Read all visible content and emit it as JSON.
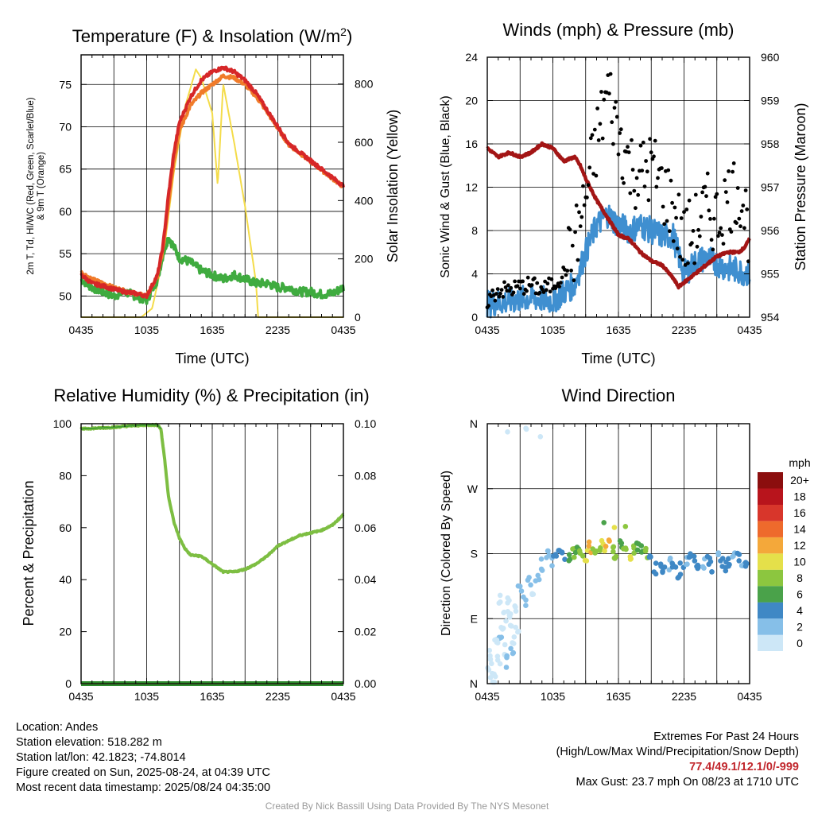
{
  "panels": {
    "temp": {
      "title": "Temperature (F) & Insolation (W/m²)",
      "xlabel": "Time (UTC)",
      "ylabel_line1": "2m T, Td, HI/WC (Red, Green, Scarlet/Blue)",
      "ylabel_line2": "& 9m T (Orange)",
      "ylabel_right": "Solar Insolation (Yellow)"
    },
    "wind": {
      "title": "Winds (mph) & Pressure (mb)",
      "xlabel": "Time (UTC)",
      "ylabel": "Sonic Wind & Gust (Blue, Black)",
      "ylabel_right": "Station Pressure (Maroon)"
    },
    "rh": {
      "title": "Relative Humidity (%) & Precipitation (in)",
      "ylabel": "Percent & Precipitation"
    },
    "dir": {
      "title": "Wind Direction",
      "ylabel": "Direction (Colored By Speed)",
      "colorbar_unit": "mph"
    }
  },
  "chart_data": [
    {
      "type": "line",
      "title": "Temperature (F) & Insolation (W/m²)",
      "xlabel": "Time (UTC)",
      "x_ticks": [
        "0435",
        "1035",
        "1635",
        "2235",
        "0435"
      ],
      "x_range_hours": [
        0,
        24
      ],
      "y_left_range": [
        47.5,
        78.5
      ],
      "y_left_ticks": [
        50,
        55,
        60,
        65,
        70,
        75
      ],
      "y_right_range": [
        0,
        900
      ],
      "y_right_ticks": [
        0,
        200,
        400,
        600,
        800
      ],
      "grid": true,
      "series": [
        {
          "name": "2m T",
          "axis": "left",
          "color": "#d62728",
          "x": [
            0,
            1,
            2,
            3,
            4,
            5,
            6,
            7,
            7.5,
            8,
            8.5,
            9,
            10,
            11,
            12,
            13,
            14,
            15,
            16,
            17,
            18,
            19,
            20,
            21,
            22,
            23,
            24
          ],
          "y": [
            52.5,
            51.5,
            51.2,
            50.8,
            50.5,
            50.3,
            50.0,
            52.5,
            56.0,
            62.0,
            67.0,
            70.5,
            73.5,
            75.5,
            76.5,
            77.0,
            76.5,
            75.5,
            74.0,
            72.0,
            70.0,
            68.0,
            67.0,
            66.0,
            65.0,
            64.0,
            63.0
          ]
        },
        {
          "name": "9m T",
          "axis": "left",
          "color": "#f07b2a",
          "x": [
            0,
            1,
            2,
            3,
            4,
            5,
            6,
            7,
            7.5,
            8,
            8.5,
            9,
            10,
            11,
            12,
            13,
            14,
            15,
            16,
            17,
            18,
            19,
            20,
            21,
            22,
            23,
            24
          ],
          "y": [
            52.8,
            52.0,
            51.5,
            51.0,
            50.6,
            50.3,
            50.0,
            52.3,
            55.5,
            61.0,
            66.0,
            69.5,
            72.5,
            74.0,
            75.0,
            76.0,
            75.8,
            75.0,
            73.6,
            71.8,
            69.8,
            67.9,
            66.9,
            65.9,
            64.9,
            63.9,
            62.9
          ]
        },
        {
          "name": "Td",
          "axis": "left",
          "color": "#3fab3f",
          "x": [
            0,
            1,
            2,
            3,
            4,
            5,
            6,
            7,
            7.5,
            8,
            9,
            10,
            11,
            12,
            13,
            14,
            15,
            16,
            17,
            18,
            19,
            20,
            21,
            22,
            23,
            24
          ],
          "y": [
            52.0,
            51.0,
            50.5,
            50.0,
            50.5,
            50.0,
            49.5,
            52.0,
            55.0,
            57.0,
            54.5,
            54.0,
            53.0,
            52.5,
            52.0,
            52.5,
            52.0,
            51.5,
            51.5,
            51.0,
            51.0,
            50.5,
            50.5,
            50.2,
            50.3,
            51.0
          ]
        },
        {
          "name": "Solar Insolation",
          "axis": "right",
          "color": "#f4dc4a",
          "x": [
            0,
            5.5,
            6.5,
            7.5,
            8.5,
            9.5,
            10.5,
            11,
            11.5,
            12,
            12.5,
            13,
            14,
            15,
            16,
            16.2,
            24
          ],
          "y": [
            0,
            0,
            30,
            200,
            500,
            720,
            850,
            820,
            760,
            700,
            450,
            800,
            600,
            380,
            120,
            0,
            0
          ]
        }
      ]
    },
    {
      "type": "line",
      "title": "Winds (mph) & Pressure (mb)",
      "xlabel": "Time (UTC)",
      "x_ticks": [
        "0435",
        "1035",
        "1635",
        "2235",
        "0435"
      ],
      "x_range_hours": [
        0,
        24
      ],
      "y_left_range": [
        0,
        24
      ],
      "y_left_ticks": [
        0,
        4,
        8,
        12,
        16,
        20,
        24
      ],
      "y_right_range": [
        954,
        960
      ],
      "y_right_ticks": [
        954,
        955,
        956,
        957,
        958,
        959,
        960
      ],
      "grid": true,
      "series": [
        {
          "name": "Sonic Wind",
          "axis": "left",
          "color": "#3f8fd0",
          "x": [
            0,
            2,
            4,
            6,
            7,
            8,
            9,
            10,
            11,
            12,
            13,
            14,
            15,
            16,
            17,
            18,
            19,
            20,
            21,
            22,
            23,
            24
          ],
          "y": [
            1.2,
            1.5,
            1.8,
            1.5,
            2.3,
            3.0,
            6.0,
            8.5,
            9.5,
            8.5,
            8.0,
            8.5,
            8.0,
            7.5,
            7.5,
            4.0,
            5.0,
            5.5,
            5.0,
            4.5,
            4.3,
            4.0
          ]
        },
        {
          "name": "Gust",
          "axis": "left",
          "color": "#000000",
          "marker": "dot",
          "x": [
            0,
            1,
            2,
            3,
            4,
            5,
            6,
            7,
            8,
            9,
            10,
            11,
            12,
            13,
            14,
            15,
            16,
            17,
            18,
            19,
            20,
            21,
            22,
            23,
            24
          ],
          "y": [
            1.5,
            2.5,
            2.5,
            2.8,
            3.0,
            2.5,
            3.0,
            4.0,
            6.5,
            11.0,
            16.0,
            21.0,
            17.0,
            14.0,
            13.0,
            14.0,
            12.0,
            10.0,
            7.0,
            8.0,
            10.0,
            9.0,
            11.0,
            12.0,
            8.0
          ]
        },
        {
          "name": "Station Pressure",
          "axis": "right",
          "color": "#a31515",
          "x": [
            0,
            1,
            2,
            3,
            4,
            5,
            6,
            7,
            8,
            8.5,
            9,
            10,
            11,
            12,
            13,
            14,
            15,
            16,
            17,
            17.5,
            18,
            19,
            20,
            21,
            22,
            23,
            23.5,
            24
          ],
          "y": [
            957.9,
            957.7,
            957.8,
            957.7,
            957.8,
            958.0,
            957.9,
            957.6,
            957.7,
            957.5,
            957.2,
            956.7,
            956.3,
            955.9,
            955.8,
            955.5,
            955.3,
            955.2,
            954.9,
            954.7,
            954.8,
            955.0,
            955.2,
            955.4,
            955.5,
            955.5,
            955.6,
            955.8
          ]
        }
      ]
    },
    {
      "type": "line",
      "title": "Relative Humidity (%) & Precipitation (in)",
      "x_ticks": [
        "0435",
        "1035",
        "1635",
        "2235",
        "0435"
      ],
      "x_range_hours": [
        0,
        24
      ],
      "y_left_range": [
        0,
        100
      ],
      "y_left_ticks": [
        0,
        20,
        40,
        60,
        80,
        100
      ],
      "y_right_range": [
        0,
        0.1
      ],
      "y_right_ticks": [
        "0.00",
        "0.02",
        "0.04",
        "0.06",
        "0.08",
        "0.10"
      ],
      "grid": true,
      "series": [
        {
          "name": "Relative Humidity",
          "axis": "left",
          "color": "#7dbe42",
          "x": [
            0,
            1,
            2,
            3,
            4,
            5,
            6,
            7,
            7.3,
            7.6,
            8,
            8.5,
            9,
            9.5,
            10,
            11,
            12,
            13,
            14,
            15,
            16,
            17,
            18,
            19,
            20,
            21,
            22,
            23,
            24
          ],
          "y": [
            98,
            98.2,
            98.4,
            98.6,
            99,
            99.3,
            99.5,
            99.5,
            98,
            88,
            72,
            62,
            56,
            52,
            49.5,
            49,
            46,
            43,
            43,
            44,
            46,
            49,
            53,
            55,
            57,
            58,
            59,
            61,
            65
          ]
        },
        {
          "name": "Precipitation",
          "axis": "right",
          "color": "#2e8b2e",
          "x": [
            0,
            24
          ],
          "y": [
            0,
            0
          ]
        }
      ]
    },
    {
      "type": "scatter",
      "title": "Wind Direction",
      "x_ticks": [
        "0435",
        "1035",
        "1635",
        "2235",
        "0435"
      ],
      "x_range_hours": [
        0,
        24
      ],
      "y_ticks": [
        "N",
        "E",
        "S",
        "W",
        "N"
      ],
      "y_range_degrees": [
        0,
        360
      ],
      "grid": true,
      "colorbar": {
        "unit": "mph",
        "levels": [
          "0",
          "2",
          "4",
          "6",
          "8",
          "10",
          "12",
          "14",
          "16",
          "18",
          "20+"
        ],
        "colors": [
          "#cde7f7",
          "#86bfe8",
          "#3f88c5",
          "#4aa24a",
          "#8cc63f",
          "#e5e04a",
          "#f4a83a",
          "#ee6a2c",
          "#d8362b",
          "#b8141c",
          "#8b0e0e"
        ]
      },
      "points": {
        "x": [
          0.3,
          0.8,
          1.2,
          1.6,
          2.0,
          2.4,
          0.5,
          1.0,
          1.4,
          1.9,
          2.3,
          2.7,
          0.6,
          1.1,
          1.5,
          2.2,
          0.2,
          0.9,
          1.7,
          2.5,
          3.0,
          3.4,
          3.8,
          4.2,
          4.6,
          5.0,
          5.4,
          5.8,
          6.2,
          6.6,
          7.0,
          7.4,
          7.8,
          8.2,
          8.6,
          9.0,
          9.4,
          9.8,
          10.2,
          10.6,
          11.0,
          11.4,
          11.8,
          12.2,
          12.6,
          13.0,
          13.4,
          13.8,
          14.2,
          14.6,
          15.0,
          15.4,
          15.8,
          16.2,
          16.6,
          17.0,
          17.4,
          17.8,
          18.2,
          18.6,
          19.0,
          19.4,
          19.8,
          20.2,
          20.6,
          21.0,
          21.4,
          21.8,
          22.2,
          22.6,
          23.0,
          23.4,
          23.8,
          1.8,
          3.5,
          3.6,
          4.7,
          10.5,
          11.8,
          12.7
        ],
        "y": [
          40,
          55,
          70,
          95,
          110,
          60,
          20,
          35,
          80,
          100,
          50,
          75,
          5,
          120,
          45,
          88,
          15,
          65,
          30,
          105,
          130,
          115,
          140,
          125,
          150,
          165,
          175,
          170,
          180,
          185,
          178,
          172,
          180,
          188,
          182,
          176,
          190,
          184,
          186,
          192,
          196,
          188,
          182,
          190,
          184,
          178,
          186,
          192,
          188,
          180,
          176,
          160,
          162,
          158,
          165,
          170,
          155,
          160,
          166,
          172,
          168,
          158,
          165,
          170,
          162,
          175,
          168,
          160,
          170,
          180,
          172,
          165,
          160,
          355,
          355,
          350,
          350,
          215,
          212,
          210
        ],
        "speed": [
          1,
          1,
          2,
          1,
          1,
          0,
          1,
          1,
          0,
          1,
          2,
          1,
          0,
          1,
          1,
          1,
          0,
          1,
          2,
          1,
          2,
          3,
          2,
          1,
          2,
          2,
          3,
          3,
          4,
          4,
          5,
          7,
          8,
          6,
          9,
          10,
          11,
          8,
          9,
          10,
          12,
          9,
          8,
          7,
          9,
          10,
          8,
          7,
          6,
          8,
          5,
          4,
          5,
          4,
          3,
          5,
          4,
          4,
          3,
          4,
          5,
          4,
          3,
          4,
          4,
          3,
          4,
          5,
          4,
          3,
          4,
          3,
          4,
          1,
          0,
          1,
          1,
          6,
          10,
          9
        ]
      }
    }
  ],
  "info": {
    "location": "Location: Andes",
    "elevation": "Station elevation: 518.282 m",
    "latlon": "Station lat/lon: 42.1823; -74.8014",
    "created": "Figure created on Sun, 2025-08-24, at 04:39 UTC",
    "recent": "Most recent data timestamp: 2025/08/24 04:35:00"
  },
  "extremes": {
    "heading": "Extremes For Past 24 Hours",
    "subheading": "(High/Low/Max Wind/Precipitation/Snow Depth)",
    "values": "77.4/49.1/12.1/0/-999",
    "max_gust": "Max Gust: 23.7 mph On 08/23 at 1710 UTC"
  },
  "credit": "Created By Nick Bassill Using Data Provided By The NYS Mesonet"
}
